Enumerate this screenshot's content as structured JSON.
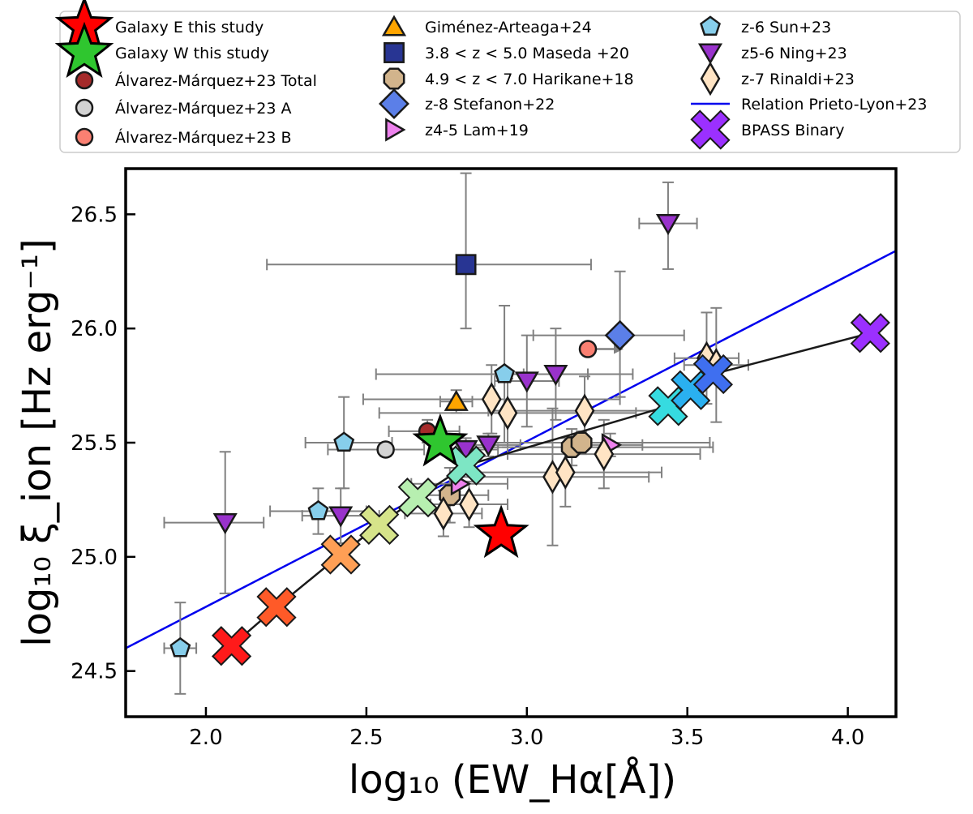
{
  "chart_data": {
    "type": "scatter",
    "xlabel": "log₁₀ (EW_Hα[Å])",
    "ylabel": "log₁₀ ξ_ion [Hz erg⁻¹]",
    "xlim": [
      1.75,
      4.15
    ],
    "ylim": [
      24.3,
      26.7
    ],
    "xticks": [
      "2.0",
      "2.5",
      "3.0",
      "3.5",
      "4.0"
    ],
    "yticks": [
      "24.5",
      "25.0",
      "25.5",
      "26.0",
      "26.5"
    ],
    "grid": false,
    "legend_position": "top, above plot (3 columns)",
    "legend": [
      {
        "label": "Galaxy E this study",
        "marker": "star",
        "color": "#ff0000"
      },
      {
        "label": "Galaxy W this study",
        "marker": "star",
        "color": "#2fc62f"
      },
      {
        "label": "Álvarez-Márquez+23 Total",
        "marker": "circle",
        "color": "#a52a2a"
      },
      {
        "label": "Álvarez-Márquez+23 A",
        "marker": "circle",
        "color": "#d3d3d3"
      },
      {
        "label": "Álvarez-Márquez+23 B",
        "marker": "circle",
        "color": "#fa8072"
      },
      {
        "label": "Giménez-Arteaga+24",
        "marker": "triangle-up",
        "color": "#ffa500"
      },
      {
        "label": "3.8 < z < 5.0 Maseda +20",
        "marker": "square",
        "color": "#283593"
      },
      {
        "label": "4.9 < z < 7.0 Harikane+18",
        "marker": "octagon",
        "color": "#d2b48c"
      },
      {
        "label": "z-8 Stefanon+22",
        "marker": "diamond",
        "color": "#5b7fe8"
      },
      {
        "label": "z4-5 Lam+19",
        "marker": "triangle-right",
        "color": "#ee82ee"
      },
      {
        "label": "z-6 Sun+23",
        "marker": "pentagon",
        "color": "#87ceeb"
      },
      {
        "label": "z5-6 Ning+23",
        "marker": "triangle-down",
        "color": "#9932cc"
      },
      {
        "label": "z-7 Rinaldi+23",
        "marker": "thin-diamond",
        "color": "#ffe4c4"
      },
      {
        "label": "Relation Prieto-Lyon+23",
        "marker": "line",
        "color": "#0000ee"
      },
      {
        "label": "BPASS Binary",
        "marker": "x",
        "color": "#9b30ff"
      }
    ],
    "series": [
      {
        "name": "Galaxy E this study",
        "marker": "star",
        "color": "#ff0000",
        "points": [
          {
            "x": 2.92,
            "y": 25.1
          }
        ]
      },
      {
        "name": "Galaxy W this study",
        "marker": "star",
        "color": "#2fc62f",
        "points": [
          {
            "x": 2.73,
            "y": 25.5
          }
        ]
      },
      {
        "name": "Álvarez-Márquez+23 Total",
        "marker": "circle",
        "color": "#a52a2a",
        "points": [
          {
            "x": 2.69,
            "y": 25.55,
            "xerr": [
              0.12,
              0.1
            ],
            "yerr": [
              0.05,
              0.05
            ]
          }
        ]
      },
      {
        "name": "Álvarez-Márquez+23 A",
        "marker": "circle",
        "color": "#d3d3d3",
        "points": [
          {
            "x": 2.56,
            "y": 25.47,
            "xerr": [
              0.18,
              0.12
            ],
            "yerr": [
              0.03,
              0.03
            ]
          }
        ]
      },
      {
        "name": "Álvarez-Márquez+23 B",
        "marker": "circle",
        "color": "#fa8072",
        "points": [
          {
            "x": 3.19,
            "y": 25.91,
            "xerr": [
              0.02,
              0.0
            ],
            "yerr": [
              0.0,
              0.0
            ]
          }
        ]
      },
      {
        "name": "Giménez-Arteaga+24",
        "marker": "triangle-up",
        "color": "#ffa500",
        "points": [
          {
            "x": 2.78,
            "y": 25.68,
            "xerr": [
              0.05,
              0.05
            ],
            "yerr": [
              0.05,
              0.05
            ]
          }
        ]
      },
      {
        "name": "3.8 < z < 5.0 Maseda +20",
        "marker": "square",
        "color": "#283593",
        "points": [
          {
            "x": 2.81,
            "y": 26.28,
            "xerr": [
              0.62,
              0.39
            ],
            "yerr": [
              0.28,
              0.4
            ]
          }
        ]
      },
      {
        "name": "4.9 < z < 7.0 Harikane+18",
        "marker": "octagon",
        "color": "#d2b48c",
        "points": [
          {
            "x": 2.76,
            "y": 25.27,
            "xerr": [
              0.12,
              0.12
            ],
            "yerr": [
              0.12,
              0.12
            ]
          },
          {
            "x": 3.14,
            "y": 25.48,
            "xerr": [
              0.3,
              0.44
            ],
            "yerr": [
              0.08,
              0.08
            ]
          },
          {
            "x": 3.17,
            "y": 25.5,
            "xerr": [
              0.3,
              0.4
            ],
            "yerr": [
              0.05,
              0.05
            ]
          }
        ]
      },
      {
        "name": "z-8 Stefanon+22",
        "marker": "diamond",
        "color": "#5b7fe8",
        "points": [
          {
            "x": 3.29,
            "y": 25.97,
            "xerr": [
              0.27,
              0.2
            ],
            "yerr": [
              0.27,
              0.28
            ]
          }
        ]
      },
      {
        "name": "z4-5 Lam+19",
        "marker": "triangle-right",
        "color": "#ee82ee",
        "points": [
          {
            "x": 2.79,
            "y": 25.32,
            "xerr": [
              0.15,
              0.15
            ],
            "yerr": [
              0.05,
              0.05
            ]
          },
          {
            "x": 3.26,
            "y": 25.49,
            "xerr": [
              0.1,
              0.1
            ],
            "yerr": [
              0.05,
              0.05
            ]
          }
        ]
      },
      {
        "name": "z-6 Sun+23",
        "marker": "pentagon",
        "color": "#87ceeb",
        "points": [
          {
            "x": 1.92,
            "y": 24.6,
            "xerr": [
              0.05,
              0.05
            ],
            "yerr": [
              0.2,
              0.2
            ]
          },
          {
            "x": 2.35,
            "y": 25.2,
            "xerr": [
              0.15,
              0.15
            ],
            "yerr": [
              0.1,
              0.1
            ]
          },
          {
            "x": 2.43,
            "y": 25.5,
            "xerr": [
              0.12,
              0.15
            ],
            "yerr": [
              0.2,
              0.2
            ]
          },
          {
            "x": 2.93,
            "y": 25.8,
            "xerr": [
              0.4,
              0.4
            ],
            "yerr": [
              0.3,
              0.3
            ]
          }
        ]
      },
      {
        "name": "z5-6 Ning+23",
        "marker": "triangle-down",
        "color": "#9932cc",
        "points": [
          {
            "x": 2.06,
            "y": 25.15,
            "xerr": [
              0.19,
              0.12
            ],
            "yerr": [
              0.31,
              0.31
            ]
          },
          {
            "x": 2.42,
            "y": 25.18,
            "xerr": [
              0.12,
              0.12
            ],
            "yerr": [
              0.12,
              0.12
            ]
          },
          {
            "x": 2.81,
            "y": 25.47,
            "xerr": [
              0.1,
              0.1
            ],
            "yerr": [
              0.05,
              0.05
            ]
          },
          {
            "x": 2.88,
            "y": 25.49,
            "xerr": [
              0.1,
              0.1
            ],
            "yerr": [
              0.05,
              0.05
            ]
          },
          {
            "x": 3.0,
            "y": 25.77,
            "xerr": [
              0.1,
              0.1
            ],
            "yerr": [
              0.2,
              0.2
            ]
          },
          {
            "x": 3.09,
            "y": 25.8,
            "xerr": [
              0.1,
              0.1
            ],
            "yerr": [
              0.2,
              0.2
            ]
          },
          {
            "x": 3.44,
            "y": 26.46,
            "xerr": [
              0.09,
              0.09
            ],
            "yerr": [
              0.2,
              0.18
            ]
          }
        ]
      },
      {
        "name": "z-7 Rinaldi+23",
        "marker": "thin-diamond",
        "color": "#ffe4c4",
        "points": [
          {
            "x": 2.74,
            "y": 25.19,
            "xerr": [
              0.12,
              0.12
            ],
            "yerr": [
              0.1,
              0.1
            ]
          },
          {
            "x": 2.82,
            "y": 25.23,
            "xerr": [
              0.12,
              0.12
            ],
            "yerr": [
              0.1,
              0.1
            ]
          },
          {
            "x": 2.89,
            "y": 25.69,
            "xerr": [
              0.4,
              0.4
            ],
            "yerr": [
              0.15,
              0.15
            ]
          },
          {
            "x": 2.94,
            "y": 25.63,
            "xerr": [
              0.4,
              0.4
            ],
            "yerr": [
              0.15,
              0.15
            ]
          },
          {
            "x": 3.08,
            "y": 25.35,
            "xerr": [
              0.3,
              0.3
            ],
            "yerr": [
              0.3,
              0.3
            ]
          },
          {
            "x": 3.12,
            "y": 25.37,
            "xerr": [
              0.3,
              0.3
            ],
            "yerr": [
              0.15,
              0.15
            ]
          },
          {
            "x": 3.18,
            "y": 25.64,
            "xerr": [
              0.3,
              0.3
            ],
            "yerr": [
              0.15,
              0.15
            ]
          },
          {
            "x": 3.24,
            "y": 25.45,
            "xerr": [
              0.3,
              0.3
            ],
            "yerr": [
              0.15,
              0.15
            ]
          },
          {
            "x": 3.56,
            "y": 25.87,
            "xerr": [
              0.1,
              0.1
            ],
            "yerr": [
              0.2,
              0.2
            ]
          },
          {
            "x": 3.59,
            "y": 25.84,
            "xerr": [
              0.1,
              0.1
            ],
            "yerr": [
              0.25,
              0.25
            ]
          }
        ]
      },
      {
        "name": "BPASS Binary",
        "marker": "x",
        "color": "#9b30ff",
        "connect": true,
        "points": [
          {
            "x": 2.08,
            "y": 24.61,
            "color": "#ff1a1a"
          },
          {
            "x": 2.22,
            "y": 24.78,
            "color": "#ff5a28"
          },
          {
            "x": 2.42,
            "y": 25.01,
            "color": "#ff9f55"
          },
          {
            "x": 2.54,
            "y": 25.14,
            "color": "#d6e48a"
          },
          {
            "x": 2.66,
            "y": 25.26,
            "color": "#b7efb0"
          },
          {
            "x": 2.81,
            "y": 25.4,
            "color": "#7de6c4"
          },
          {
            "x": 3.44,
            "y": 25.66,
            "color": "#36dbe0"
          },
          {
            "x": 3.51,
            "y": 25.73,
            "color": "#2ab0f0"
          },
          {
            "x": 3.58,
            "y": 25.8,
            "color": "#3f6ff0"
          },
          {
            "x": 4.07,
            "y": 25.98,
            "color": "#9b30ff"
          }
        ]
      }
    ],
    "relation_line": {
      "name": "Relation Prieto-Lyon+23",
      "color": "#0000ee",
      "x": [
        1.75,
        4.15
      ],
      "y": [
        24.6,
        26.34
      ]
    }
  }
}
